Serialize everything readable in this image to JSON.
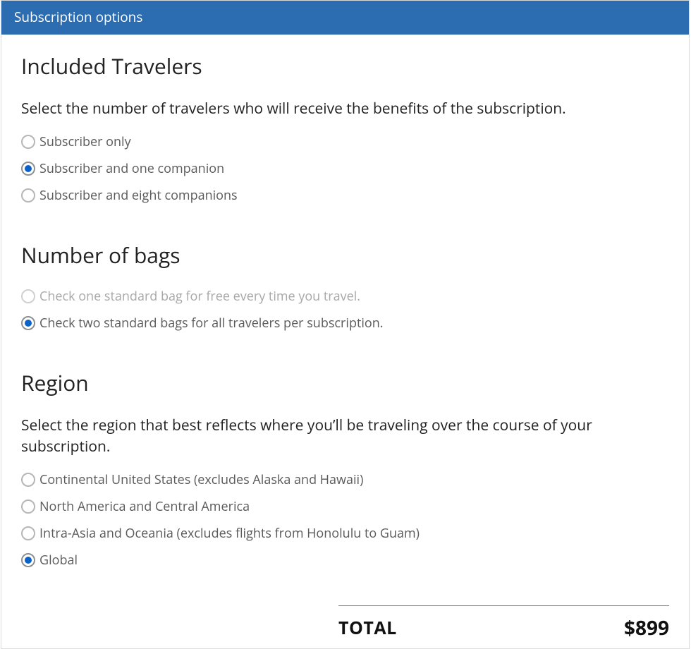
{
  "header": {
    "title": "Subscription options"
  },
  "sections": {
    "travelers": {
      "title": "Included Travelers",
      "description": "Select the number of travelers who will receive the benefits of the subscription.",
      "options": [
        {
          "label": "Subscriber only",
          "selected": false,
          "disabled": false
        },
        {
          "label": "Subscriber and one companion",
          "selected": true,
          "disabled": false
        },
        {
          "label": "Subscriber and eight companions",
          "selected": false,
          "disabled": false
        }
      ]
    },
    "bags": {
      "title": "Number of bags",
      "options": [
        {
          "label": "Check one standard bag for free every time you travel.",
          "selected": false,
          "disabled": true
        },
        {
          "label": "Check two standard bags for all travelers per subscription.",
          "selected": true,
          "disabled": false
        }
      ]
    },
    "region": {
      "title": "Region",
      "description": "Select the region that best reflects where you’ll be traveling over the course of your subscription.",
      "options": [
        {
          "label": "Continental United States (excludes Alaska and Hawaii)",
          "selected": false,
          "disabled": false
        },
        {
          "label": "North America and Central America",
          "selected": false,
          "disabled": false
        },
        {
          "label": "Intra-Asia and Oceania (excludes flights from Honolulu to Guam)",
          "selected": false,
          "disabled": false
        },
        {
          "label": "Global",
          "selected": true,
          "disabled": false
        }
      ]
    }
  },
  "total": {
    "label": "TOTAL",
    "value": "$899"
  },
  "colors": {
    "header_bg": "#2c6cb0",
    "radio_selected": "#0b62c8",
    "text_primary": "#222222",
    "text_secondary": "#5a5a5a",
    "text_disabled": "#a8a8a8",
    "border": "#d9d9d9"
  }
}
